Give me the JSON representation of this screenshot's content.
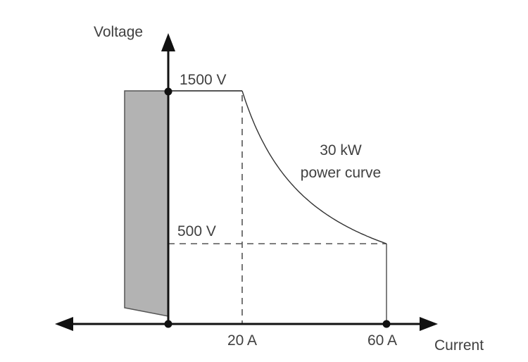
{
  "axes": {
    "y_label": "Voltage",
    "x_label": "Current"
  },
  "voltage_levels": {
    "max": "1500 V",
    "min": "500 V"
  },
  "current_levels": {
    "low": "20 A",
    "high": "60 A"
  },
  "curve_label": {
    "line1": "30 kW",
    "line2": "power curve"
  },
  "curve": {
    "power_w": 30000,
    "i_start_a": 20,
    "i_end_a": 60,
    "v_max_v": 1500,
    "v_min_v": 500
  },
  "colors": {
    "shaded_region": "#b3b3b3",
    "axis": "#111111",
    "text": "#404040"
  }
}
